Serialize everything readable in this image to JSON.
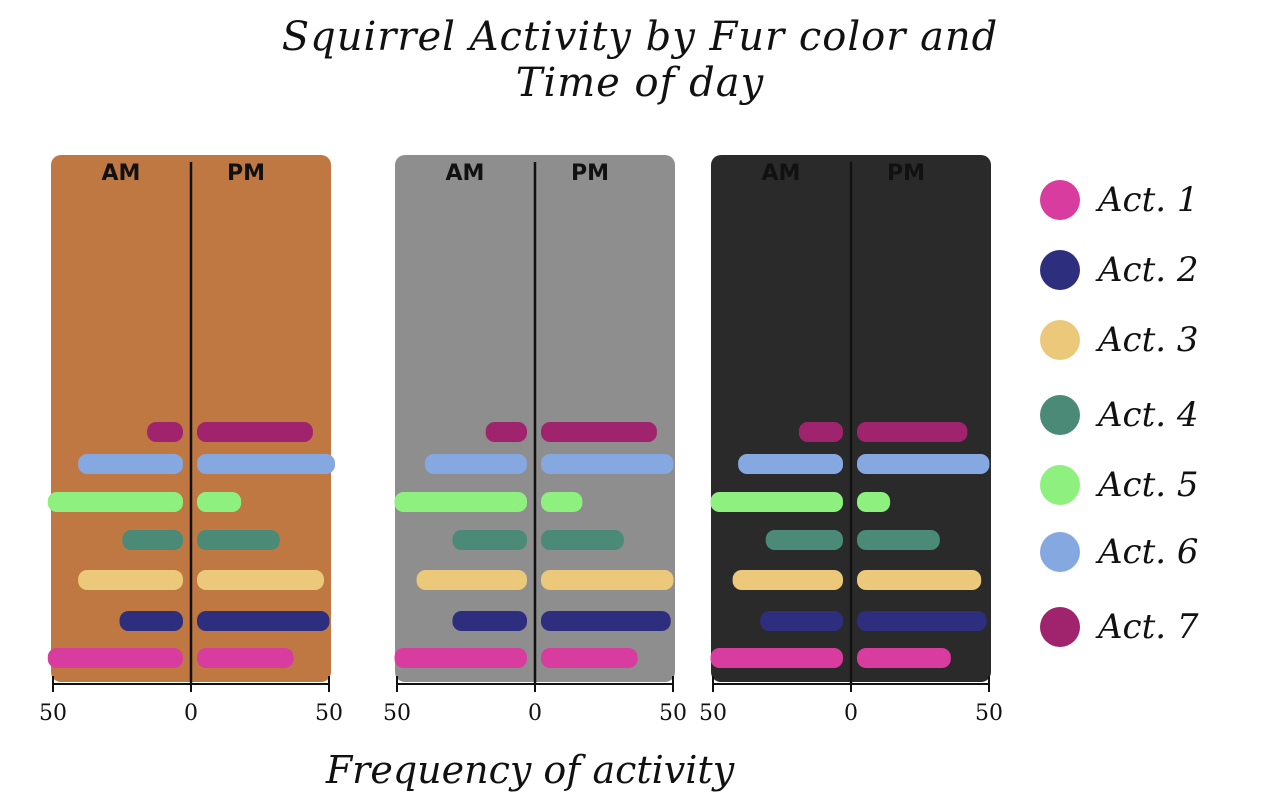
{
  "chart_data": {
    "type": "bar",
    "title_line1": "Squirrel Activity by Fur color and",
    "title_line2": "Time of day",
    "xlabel": "Frequency of activity",
    "xlim": [
      50,
      0,
      50
    ],
    "panel_headers": [
      "AM",
      "PM"
    ],
    "categories": [
      "Act. 1",
      "Act. 2",
      "Act. 3",
      "Act. 4",
      "Act. 5",
      "Act. 6",
      "Act. 7"
    ],
    "colors": [
      "#d83c9e",
      "#2e2e7e",
      "#ecc97a",
      "#4a8a76",
      "#8ef07e",
      "#86a8e0",
      "#a0236e"
    ],
    "panels": [
      {
        "fur": "cinnamon",
        "bg": "#c07842",
        "am": [
          49,
          23,
          38,
          22,
          49,
          38,
          13
        ],
        "pm": [
          35,
          48,
          46,
          30,
          16,
          50,
          42
        ]
      },
      {
        "fur": "gray",
        "bg": "#8e8e8e",
        "am": [
          48,
          27,
          40,
          27,
          48,
          37,
          15
        ],
        "pm": [
          35,
          47,
          48,
          30,
          15,
          48,
          42
        ]
      },
      {
        "fur": "black",
        "bg": "#2a2a2a",
        "am": [
          48,
          30,
          40,
          28,
          48,
          38,
          16
        ],
        "pm": [
          34,
          47,
          45,
          30,
          12,
          48,
          40
        ]
      }
    ],
    "tick_labels": [
      "50",
      "0",
      "50"
    ],
    "legend_labels": [
      "Act. 1",
      "Act. 2",
      "Act. 3",
      "Act. 4",
      "Act. 5",
      "Act. 6",
      "Act. 7"
    ]
  }
}
